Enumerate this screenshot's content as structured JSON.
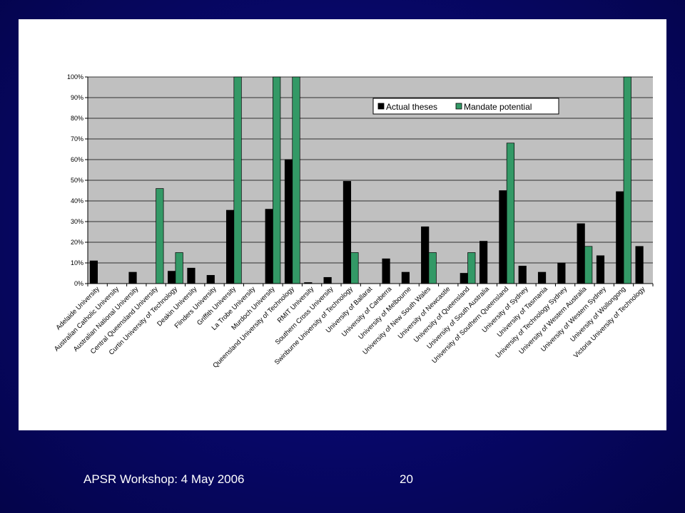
{
  "footer": {
    "left": "APSR Workshop: 4 May 2006",
    "page_number": "20"
  },
  "colors": {
    "background": "#07076a",
    "plot_area": "#c0c0c0",
    "series_actual": "#000000",
    "series_mandate": "#339966"
  },
  "chart_data": {
    "type": "bar",
    "title": "",
    "xlabel": "",
    "ylabel": "",
    "ylim": [
      0,
      100
    ],
    "ytick_step": 10,
    "yticks": [
      "0%",
      "10%",
      "20%",
      "30%",
      "40%",
      "50%",
      "60%",
      "70%",
      "80%",
      "90%",
      "100%"
    ],
    "grid": true,
    "legend_position": "top-right",
    "categories": [
      "Adelaide University",
      "Australian Catholic University",
      "Australian National University",
      "Central Queensland University",
      "Curtin University of Technology",
      "Deakin University",
      "Flinders University",
      "Griffith University",
      "La Trobe University",
      "Murdoch University",
      "Queensland University of Technology",
      "RMIT University",
      "Southern Cross University",
      "Swinburne University of Technology",
      "University of Ballarat",
      "University of Canberra",
      "University of Melbourne",
      "University of New South Wales",
      "University of Newcastle",
      "University of Queensland",
      "University of South Australia",
      "University of Southern Queensland",
      "University of Sydney",
      "University of Tasmania",
      "University of Technology Sydney",
      "University of Western Australia",
      "University of Western Sydney",
      "University of Wollongong",
      "Victoria University of Technology"
    ],
    "series": [
      {
        "name": "Actual theses",
        "values": [
          11,
          0,
          5.5,
          0,
          6,
          7.5,
          4,
          35.5,
          0,
          36,
          60,
          0.5,
          3,
          49.5,
          0,
          12,
          5.5,
          27.5,
          0,
          5,
          20.5,
          45,
          8.5,
          5.5,
          10,
          29,
          13.5,
          44.5,
          18
        ]
      },
      {
        "name": "Mandate potential",
        "values": [
          0,
          0,
          0,
          46,
          15,
          0,
          0,
          100,
          0,
          100,
          100,
          0,
          0,
          15,
          0,
          0,
          0,
          15,
          0,
          15,
          0,
          68,
          0,
          0,
          0,
          18,
          0,
          100,
          0
        ]
      }
    ]
  }
}
